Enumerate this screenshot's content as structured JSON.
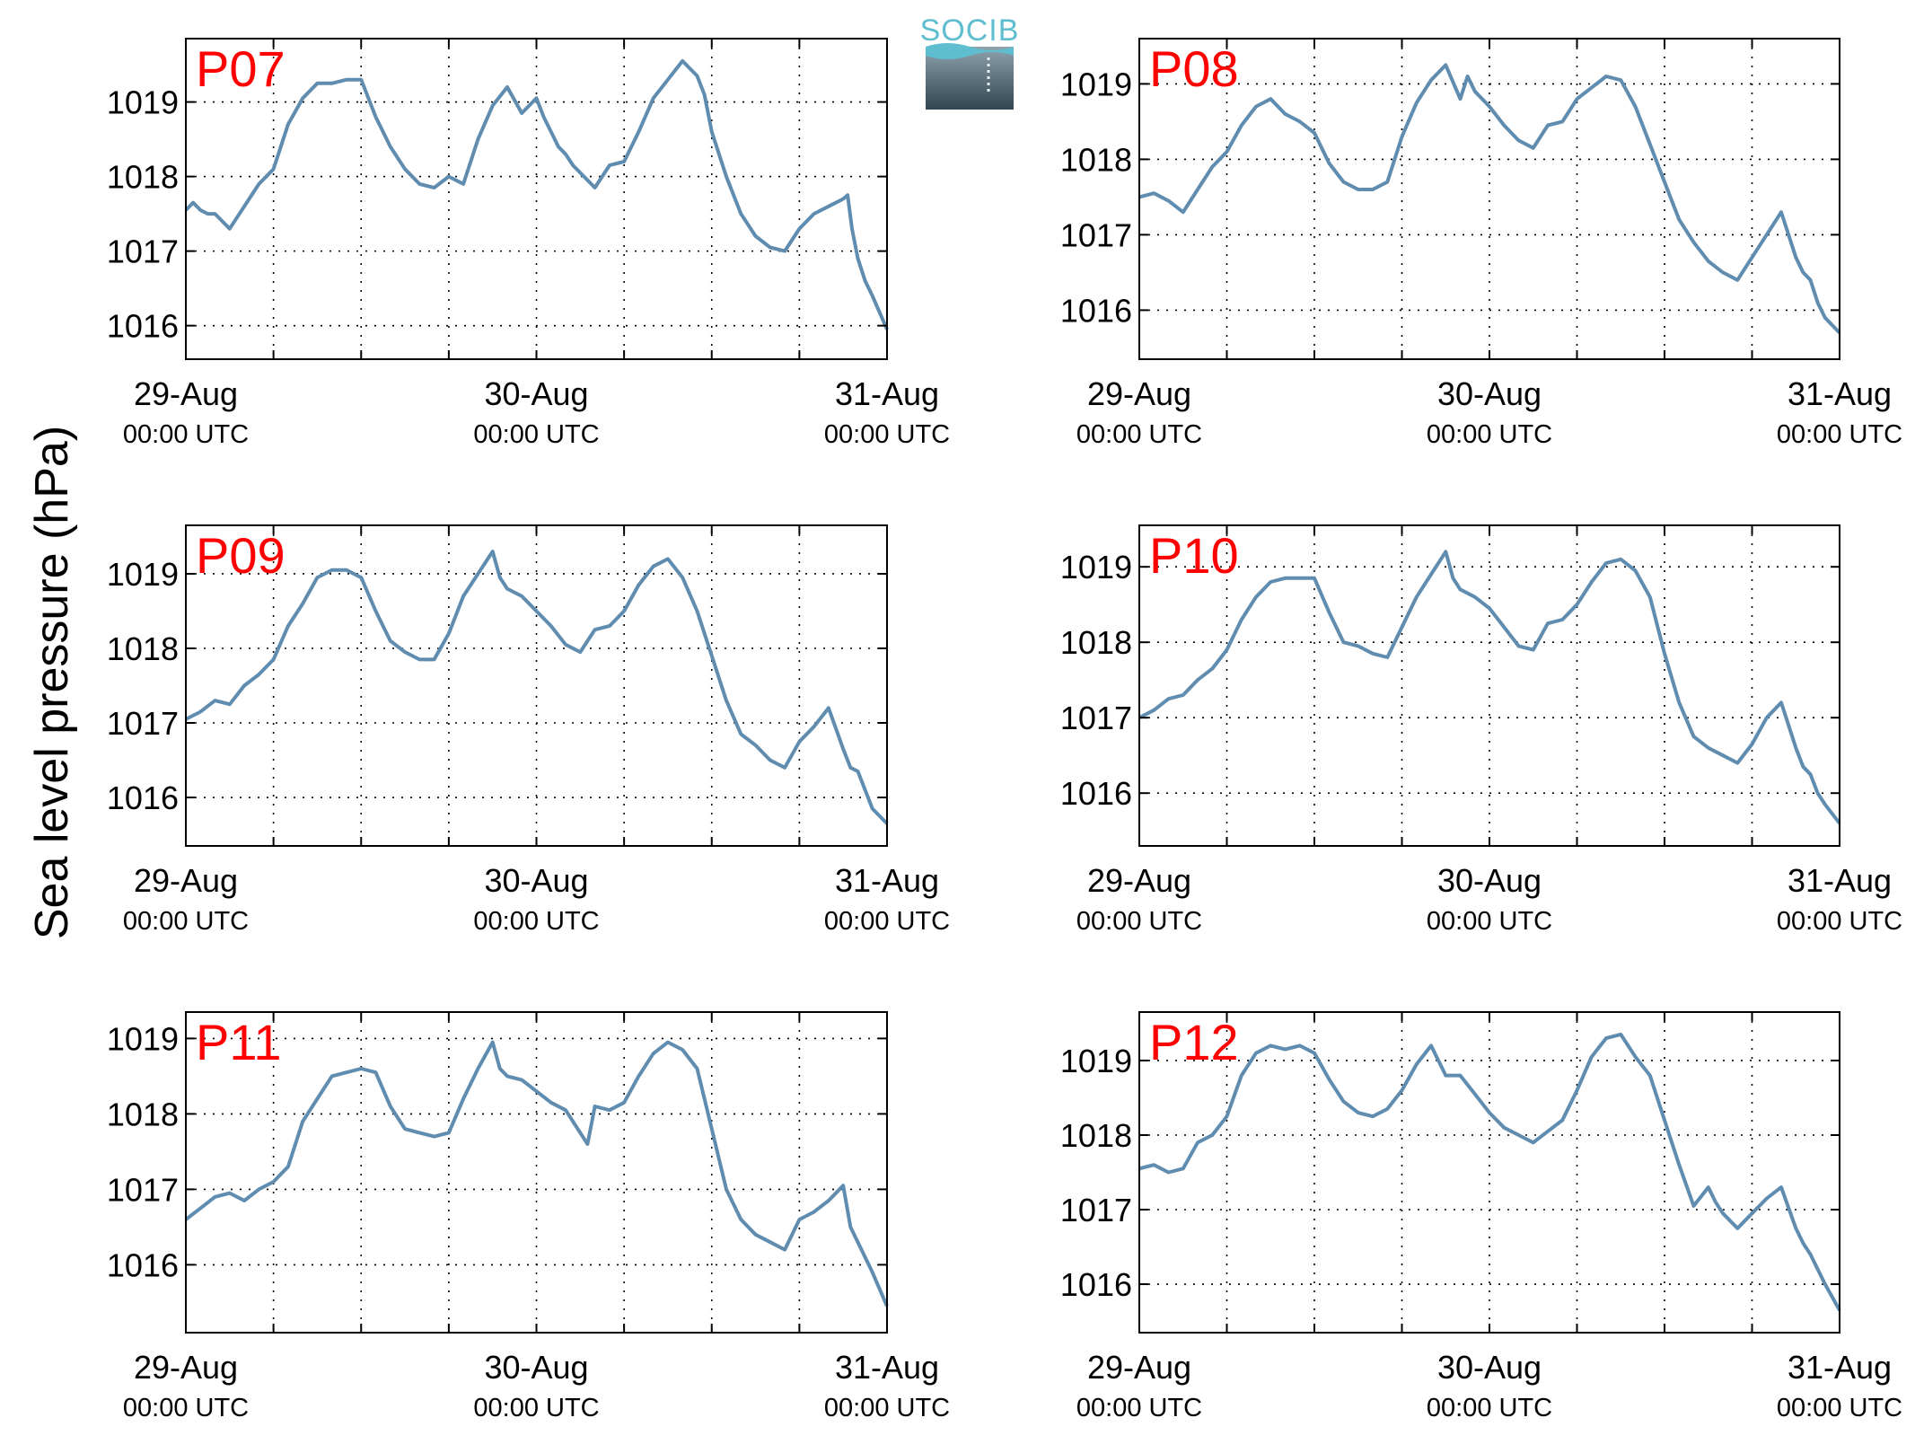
{
  "figure": {
    "ylabel": "Sea level pressure (hPa)",
    "logo_text": "SOCIB"
  },
  "chart_data": [
    {
      "type": "line",
      "title": "P07",
      "x_ticks": [
        {
          "top": "29-Aug",
          "bottom": "00:00 UTC"
        },
        {
          "top": "30-Aug",
          "bottom": "00:00 UTC"
        },
        {
          "top": "31-Aug",
          "bottom": "00:00 UTC"
        }
      ],
      "y_ticks": [
        1016,
        1017,
        1018,
        1019
      ],
      "xlim": [
        0,
        48
      ],
      "ylim": [
        1015.55,
        1019.85
      ],
      "grid": true,
      "line_color": "#5f8caf",
      "series": [
        {
          "x": [
            0,
            0.5,
            1,
            1.5,
            2,
            3,
            3.5,
            4,
            5,
            6,
            7,
            8,
            9,
            10,
            11,
            12,
            13,
            14,
            15,
            16,
            17,
            18,
            19,
            20,
            21,
            22,
            23,
            24,
            24.5,
            25,
            25.5,
            26,
            26.5,
            27,
            28,
            29,
            30,
            31,
            32,
            33,
            34,
            35,
            35.5,
            36,
            37,
            38,
            39,
            40,
            41,
            42,
            43,
            44,
            45,
            45.3,
            45.6,
            46,
            46.5,
            47,
            48
          ],
          "y": [
            1017.55,
            1017.65,
            1017.55,
            1017.5,
            1017.5,
            1017.3,
            1017.45,
            1017.6,
            1017.9,
            1018.1,
            1018.7,
            1019.05,
            1019.25,
            1019.25,
            1019.3,
            1019.3,
            1018.8,
            1018.4,
            1018.1,
            1017.9,
            1017.85,
            1018.0,
            1017.9,
            1018.5,
            1018.95,
            1019.2,
            1018.85,
            1019.05,
            1018.8,
            1018.6,
            1018.4,
            1018.3,
            1018.15,
            1018.05,
            1017.85,
            1018.15,
            1018.2,
            1018.6,
            1019.05,
            1019.3,
            1019.55,
            1019.35,
            1019.1,
            1018.6,
            1018.0,
            1017.5,
            1017.2,
            1017.05,
            1017.0,
            1017.3,
            1017.5,
            1017.6,
            1017.7,
            1017.75,
            1017.3,
            1016.9,
            1016.6,
            1016.4,
            1015.95
          ]
        }
      ]
    },
    {
      "type": "line",
      "title": "P08",
      "x_ticks": [
        {
          "top": "29-Aug",
          "bottom": "00:00 UTC"
        },
        {
          "top": "30-Aug",
          "bottom": "00:00 UTC"
        },
        {
          "top": "31-Aug",
          "bottom": "00:00 UTC"
        }
      ],
      "y_ticks": [
        1016,
        1017,
        1018,
        1019
      ],
      "xlim": [
        0,
        48
      ],
      "ylim": [
        1015.35,
        1019.6
      ],
      "grid": true,
      "line_color": "#5f8caf",
      "series": [
        {
          "x": [
            0,
            1,
            2,
            3,
            4,
            5,
            6,
            7,
            8,
            9,
            10,
            11,
            12,
            13,
            14,
            15,
            16,
            17,
            18,
            19,
            20,
            21,
            22,
            22.5,
            23,
            24,
            25,
            26,
            27,
            28,
            29,
            30,
            31,
            32,
            33,
            34,
            35,
            36,
            37,
            38,
            39,
            40,
            41,
            42,
            43,
            44,
            45,
            45.5,
            46,
            46.5,
            47,
            48
          ],
          "y": [
            1017.5,
            1017.55,
            1017.45,
            1017.3,
            1017.6,
            1017.9,
            1018.1,
            1018.45,
            1018.7,
            1018.8,
            1018.6,
            1018.5,
            1018.35,
            1017.95,
            1017.7,
            1017.6,
            1017.6,
            1017.7,
            1018.3,
            1018.75,
            1019.05,
            1019.25,
            1018.8,
            1019.1,
            1018.9,
            1018.7,
            1018.45,
            1018.25,
            1018.15,
            1018.45,
            1018.5,
            1018.8,
            1018.95,
            1019.1,
            1019.05,
            1018.7,
            1018.2,
            1017.7,
            1017.2,
            1016.9,
            1016.65,
            1016.5,
            1016.4,
            1016.7,
            1017.0,
            1017.3,
            1016.7,
            1016.5,
            1016.4,
            1016.1,
            1015.9,
            1015.7
          ]
        }
      ]
    },
    {
      "type": "line",
      "title": "P09",
      "x_ticks": [
        {
          "top": "29-Aug",
          "bottom": "00:00 UTC"
        },
        {
          "top": "30-Aug",
          "bottom": "00:00 UTC"
        },
        {
          "top": "31-Aug",
          "bottom": "00:00 UTC"
        }
      ],
      "y_ticks": [
        1016,
        1017,
        1018,
        1019
      ],
      "xlim": [
        0,
        48
      ],
      "ylim": [
        1015.35,
        1019.65
      ],
      "grid": true,
      "line_color": "#5f8caf",
      "series": [
        {
          "x": [
            0,
            1,
            2,
            3,
            4,
            5,
            6,
            7,
            8,
            9,
            10,
            11,
            12,
            13,
            14,
            15,
            16,
            17,
            18,
            19,
            20,
            21,
            21.5,
            22,
            23,
            24,
            25,
            26,
            27,
            28,
            29,
            30,
            31,
            32,
            33,
            34,
            35,
            36,
            37,
            38,
            39,
            40,
            41,
            42,
            43,
            44,
            45,
            45.5,
            46,
            46.5,
            47,
            48
          ],
          "y": [
            1017.05,
            1017.15,
            1017.3,
            1017.25,
            1017.5,
            1017.65,
            1017.85,
            1018.3,
            1018.6,
            1018.95,
            1019.05,
            1019.05,
            1018.95,
            1018.5,
            1018.1,
            1017.95,
            1017.85,
            1017.85,
            1018.2,
            1018.7,
            1019.0,
            1019.3,
            1018.95,
            1018.8,
            1018.7,
            1018.5,
            1018.3,
            1018.05,
            1017.95,
            1018.25,
            1018.3,
            1018.5,
            1018.85,
            1019.1,
            1019.2,
            1018.95,
            1018.5,
            1017.9,
            1017.3,
            1016.85,
            1016.7,
            1016.5,
            1016.4,
            1016.75,
            1016.95,
            1017.2,
            1016.65,
            1016.4,
            1016.35,
            1016.1,
            1015.85,
            1015.65
          ]
        }
      ]
    },
    {
      "type": "line",
      "title": "P10",
      "x_ticks": [
        {
          "top": "29-Aug",
          "bottom": "00:00 UTC"
        },
        {
          "top": "30-Aug",
          "bottom": "00:00 UTC"
        },
        {
          "top": "31-Aug",
          "bottom": "00:00 UTC"
        }
      ],
      "y_ticks": [
        1016,
        1017,
        1018,
        1019
      ],
      "xlim": [
        0,
        48
      ],
      "ylim": [
        1015.3,
        1019.55
      ],
      "grid": true,
      "line_color": "#5f8caf",
      "series": [
        {
          "x": [
            0,
            1,
            2,
            3,
            4,
            5,
            6,
            7,
            8,
            9,
            10,
            11,
            12,
            13,
            14,
            15,
            16,
            17,
            18,
            19,
            20,
            21,
            21.5,
            22,
            23,
            24,
            25,
            26,
            27,
            28,
            29,
            30,
            31,
            32,
            33,
            34,
            35,
            36,
            37,
            38,
            39,
            40,
            41,
            42,
            43,
            44,
            45,
            45.5,
            46,
            46.5,
            47,
            48
          ],
          "y": [
            1017.0,
            1017.1,
            1017.25,
            1017.3,
            1017.5,
            1017.65,
            1017.9,
            1018.3,
            1018.6,
            1018.8,
            1018.85,
            1018.85,
            1018.85,
            1018.4,
            1018.0,
            1017.95,
            1017.85,
            1017.8,
            1018.2,
            1018.6,
            1018.9,
            1019.2,
            1018.85,
            1018.7,
            1018.6,
            1018.45,
            1018.2,
            1017.95,
            1017.9,
            1018.25,
            1018.3,
            1018.5,
            1018.8,
            1019.05,
            1019.1,
            1018.95,
            1018.6,
            1017.85,
            1017.2,
            1016.75,
            1016.6,
            1016.5,
            1016.4,
            1016.65,
            1017.0,
            1017.2,
            1016.6,
            1016.35,
            1016.25,
            1016.0,
            1015.85,
            1015.6
          ]
        }
      ]
    },
    {
      "type": "line",
      "title": "P11",
      "x_ticks": [
        {
          "top": "29-Aug",
          "bottom": "00:00 UTC"
        },
        {
          "top": "30-Aug",
          "bottom": "00:00 UTC"
        },
        {
          "top": "31-Aug",
          "bottom": "00:00 UTC"
        }
      ],
      "y_ticks": [
        1016,
        1017,
        1018,
        1019
      ],
      "xlim": [
        0,
        48
      ],
      "ylim": [
        1015.1,
        1019.35
      ],
      "grid": true,
      "line_color": "#5f8caf",
      "series": [
        {
          "x": [
            0,
            1,
            2,
            3,
            4,
            5,
            6,
            7,
            8,
            9,
            10,
            11,
            12,
            13,
            14,
            15,
            16,
            17,
            18,
            19,
            20,
            21,
            21.5,
            22,
            23,
            24,
            25,
            26,
            27,
            27.5,
            28,
            29,
            30,
            31,
            32,
            33,
            34,
            35,
            36,
            37,
            38,
            39,
            40,
            41,
            42,
            43,
            44,
            45,
            45.5,
            46,
            46.5,
            47,
            48
          ],
          "y": [
            1016.6,
            1016.75,
            1016.9,
            1016.95,
            1016.85,
            1017.0,
            1017.1,
            1017.3,
            1017.9,
            1018.2,
            1018.5,
            1018.55,
            1018.6,
            1018.55,
            1018.1,
            1017.8,
            1017.75,
            1017.7,
            1017.75,
            1018.2,
            1018.6,
            1018.95,
            1018.6,
            1018.5,
            1018.45,
            1018.3,
            1018.15,
            1018.05,
            1017.75,
            1017.6,
            1018.1,
            1018.05,
            1018.15,
            1018.5,
            1018.8,
            1018.95,
            1018.85,
            1018.6,
            1017.8,
            1017.0,
            1016.6,
            1016.4,
            1016.3,
            1016.2,
            1016.6,
            1016.7,
            1016.85,
            1017.05,
            1016.5,
            1016.3,
            1016.1,
            1015.9,
            1015.45
          ]
        }
      ]
    },
    {
      "type": "line",
      "title": "P12",
      "x_ticks": [
        {
          "top": "29-Aug",
          "bottom": "00:00 UTC"
        },
        {
          "top": "30-Aug",
          "bottom": "00:00 UTC"
        },
        {
          "top": "31-Aug",
          "bottom": "00:00 UTC"
        }
      ],
      "y_ticks": [
        1016,
        1017,
        1018,
        1019
      ],
      "xlim": [
        0,
        48
      ],
      "ylim": [
        1015.35,
        1019.65
      ],
      "grid": true,
      "line_color": "#5f8caf",
      "series": [
        {
          "x": [
            0,
            1,
            2,
            3,
            4,
            5,
            6,
            7,
            8,
            9,
            10,
            11,
            12,
            13,
            14,
            15,
            16,
            17,
            18,
            19,
            20,
            21,
            22,
            23,
            24,
            25,
            26,
            27,
            28,
            29,
            30,
            31,
            32,
            33,
            34,
            35,
            36,
            37,
            38,
            39,
            39.5,
            40,
            41,
            42,
            43,
            44,
            45,
            45.5,
            46,
            46.5,
            47,
            48
          ],
          "y": [
            1017.55,
            1017.6,
            1017.5,
            1017.55,
            1017.9,
            1018.0,
            1018.25,
            1018.8,
            1019.1,
            1019.2,
            1019.15,
            1019.2,
            1019.1,
            1018.75,
            1018.45,
            1018.3,
            1018.25,
            1018.35,
            1018.6,
            1018.95,
            1019.2,
            1018.8,
            1018.8,
            1018.55,
            1018.3,
            1018.1,
            1018.0,
            1017.9,
            1018.05,
            1018.2,
            1018.6,
            1019.05,
            1019.3,
            1019.35,
            1019.05,
            1018.8,
            1018.2,
            1017.6,
            1017.05,
            1017.3,
            1017.1,
            1016.95,
            1016.75,
            1016.95,
            1017.15,
            1017.3,
            1016.75,
            1016.55,
            1016.4,
            1016.2,
            1016.0,
            1015.65
          ]
        }
      ]
    }
  ]
}
